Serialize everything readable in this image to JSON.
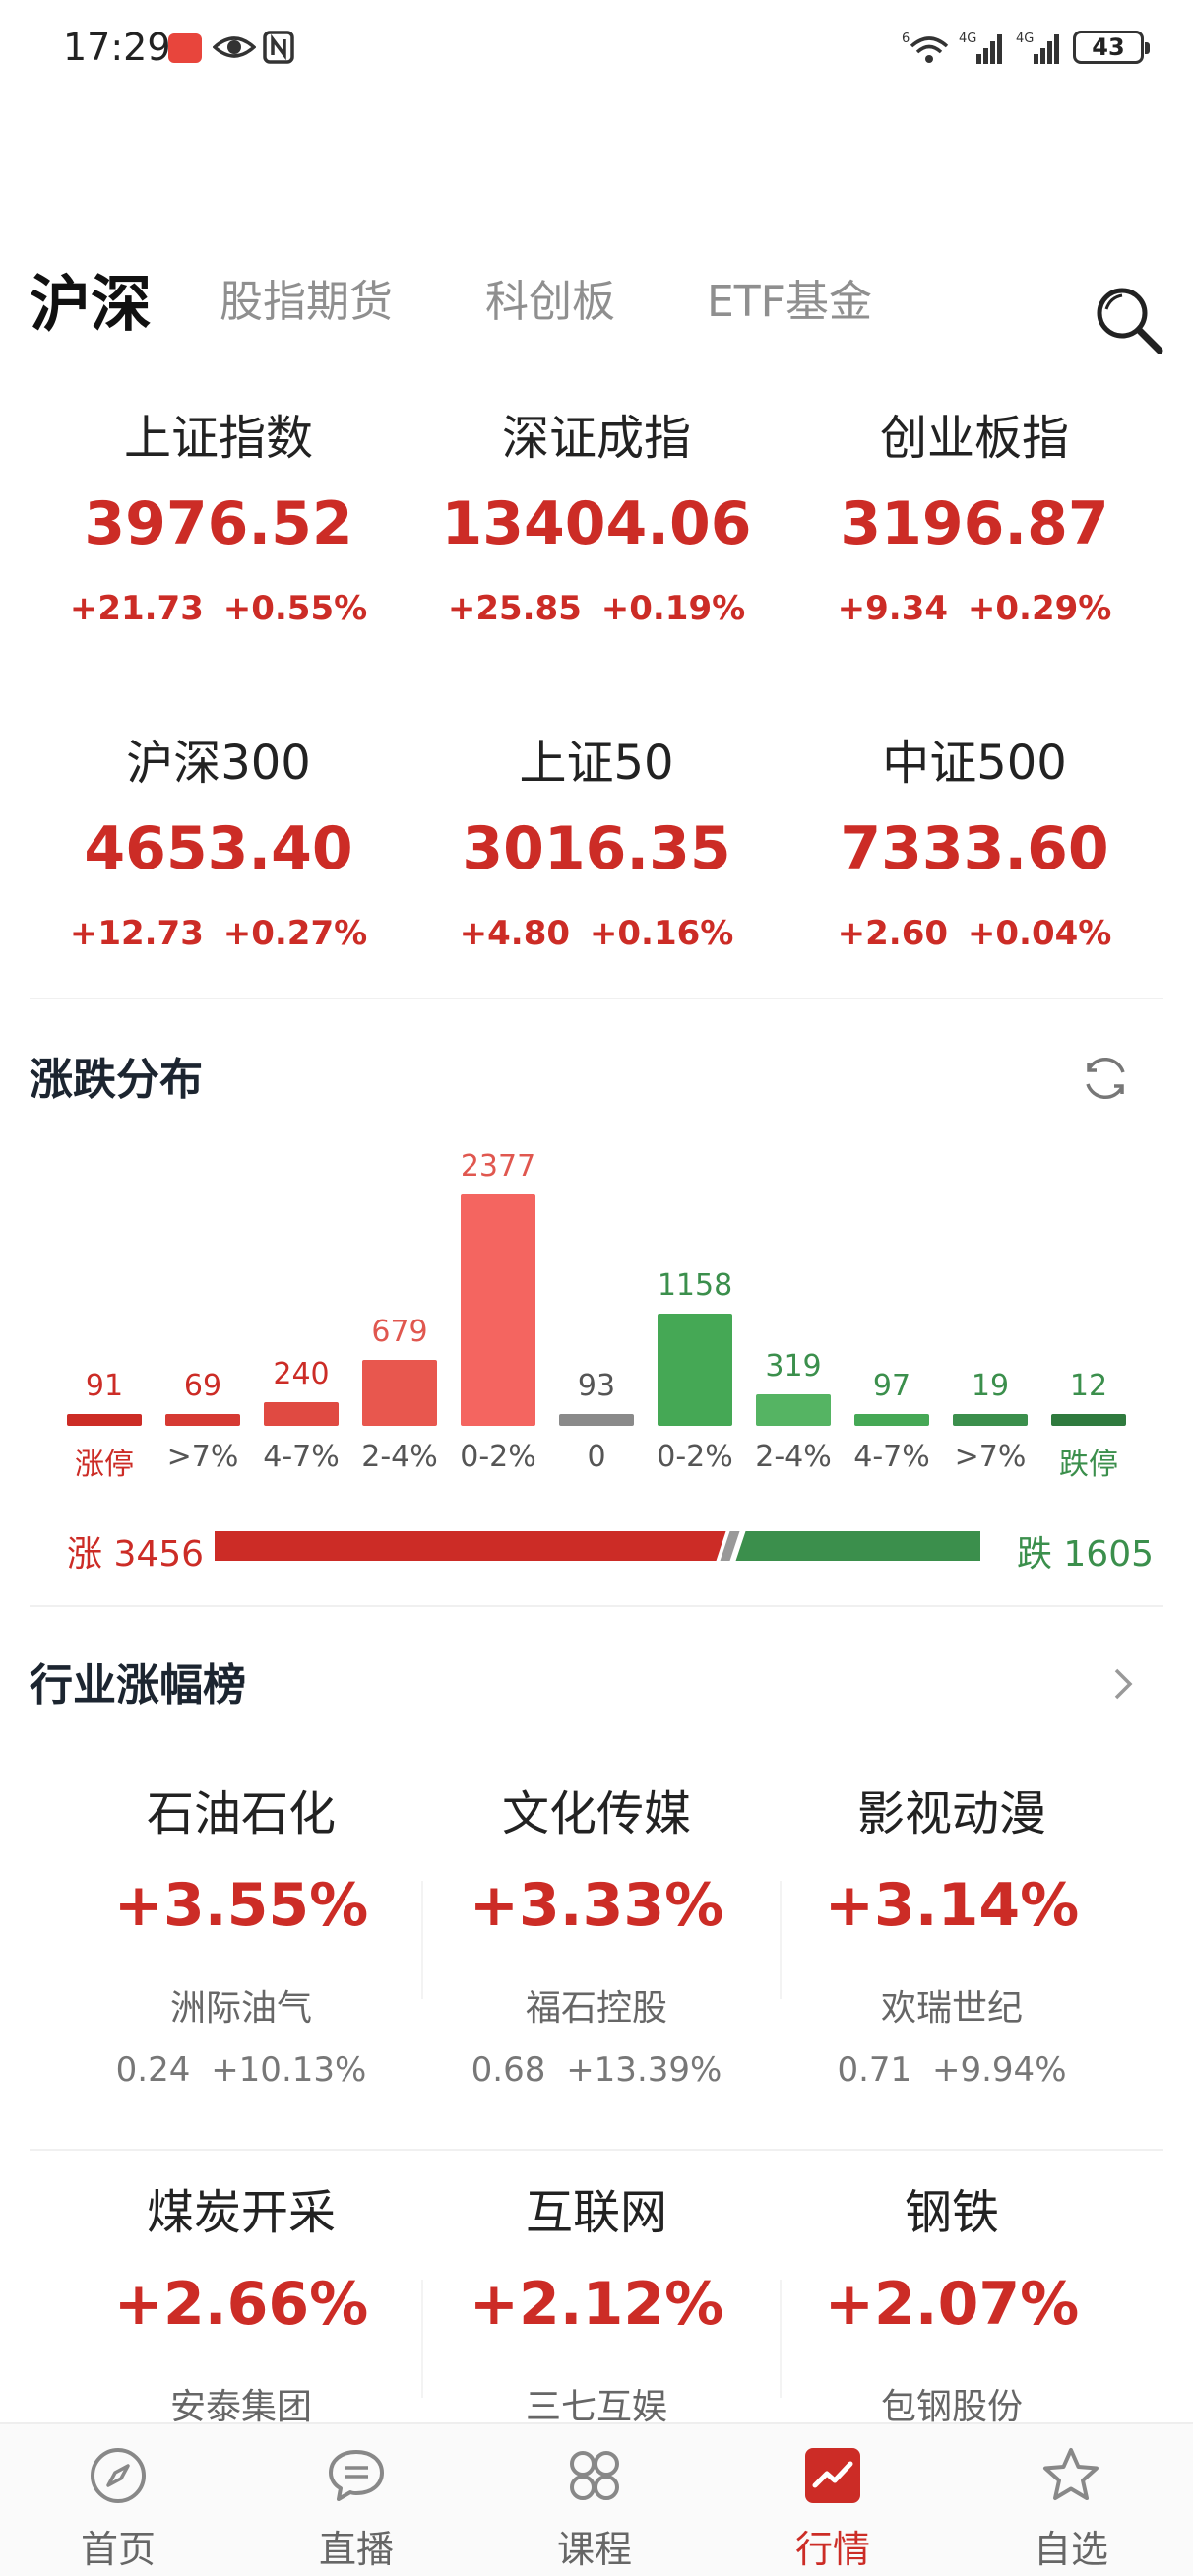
{
  "status_bar": {
    "time": "17:29",
    "network_1": "6",
    "network_2": "4G",
    "network_3": "4G",
    "battery": "43"
  },
  "tabs": [
    {
      "label": "沪深",
      "active": true
    },
    {
      "label": "股指期货",
      "active": false
    },
    {
      "label": "科创板",
      "active": false
    },
    {
      "label": "ETF基金",
      "active": false
    }
  ],
  "indices": [
    {
      "name": "上证指数",
      "value": "3976.52",
      "change": "+21.73",
      "percent": "+0.55%"
    },
    {
      "name": "深证成指",
      "value": "13404.06",
      "change": "+25.85",
      "percent": "+0.19%"
    },
    {
      "name": "创业板指",
      "value": "3196.87",
      "change": "+9.34",
      "percent": "+0.29%"
    },
    {
      "name": "沪深300",
      "value": "4653.40",
      "change": "+12.73",
      "percent": "+0.27%"
    },
    {
      "name": "上证50",
      "value": "3016.35",
      "change": "+4.80",
      "percent": "+0.16%"
    },
    {
      "name": "中证500",
      "value": "7333.60",
      "change": "+2.60",
      "percent": "+0.04%"
    }
  ],
  "distribution": {
    "title": "涨跌分布",
    "up_label": "涨 3456",
    "down_label": "跌 1605",
    "up_total": 3456,
    "down_total": 1605
  },
  "chart_data": {
    "type": "bar",
    "categories": [
      "涨停",
      ">7%",
      "4-7%",
      "2-4%",
      "0-2%",
      "0",
      "0-2%",
      "2-4%",
      "4-7%",
      ">7%",
      "跌停"
    ],
    "values": [
      91,
      69,
      240,
      679,
      2377,
      93,
      1158,
      319,
      97,
      19,
      12
    ],
    "colors": [
      "#cc2c26",
      "#d63a33",
      "#e04a42",
      "#e8574e",
      "#f46560",
      "#8a8a8a",
      "#45a855",
      "#55b463",
      "#45a855",
      "#3b8f4c",
      "#2f7a3e"
    ],
    "label_colors": [
      "#cc2c26",
      "#cc2c26",
      "#cc2c26",
      "#e0574f",
      "#e0574f",
      "#555555",
      "#3b8f4c",
      "#3b8f4c",
      "#3b8f4c",
      "#3b8f4c",
      "#3b8f4c"
    ],
    "ylim": [
      0,
      2377
    ]
  },
  "industry": {
    "title": "行业涨幅榜",
    "items": [
      {
        "name": "石油石化",
        "change": "+3.55%",
        "leader": "洲际油气",
        "price": "0.24",
        "leader_change": "+10.13%"
      },
      {
        "name": "文化传媒",
        "change": "+3.33%",
        "leader": "福石控股",
        "price": "0.68",
        "leader_change": "+13.39%"
      },
      {
        "name": "影视动漫",
        "change": "+3.14%",
        "leader": "欢瑞世纪",
        "price": "0.71",
        "leader_change": "+9.94%"
      },
      {
        "name": "煤炭开采",
        "change": "+2.66%",
        "leader": "安泰集团",
        "price": "",
        "leader_change": ""
      },
      {
        "name": "互联网",
        "change": "+2.12%",
        "leader": "三七互娱",
        "price": "",
        "leader_change": ""
      },
      {
        "name": "钢铁",
        "change": "+2.07%",
        "leader": "包钢股份",
        "price": "",
        "leader_change": ""
      }
    ]
  },
  "bottom_nav": [
    {
      "label": "首页",
      "icon": "compass-icon",
      "active": false
    },
    {
      "label": "直播",
      "icon": "chat-bubble-icon",
      "active": false
    },
    {
      "label": "课程",
      "icon": "grid-icon",
      "active": false
    },
    {
      "label": "行情",
      "icon": "trend-chart-icon",
      "active": true
    },
    {
      "label": "自选",
      "icon": "star-icon",
      "active": false
    }
  ],
  "colors": {
    "up": "#cc2c26",
    "down": "#3b8f4c",
    "accent": "#cc2c26"
  }
}
